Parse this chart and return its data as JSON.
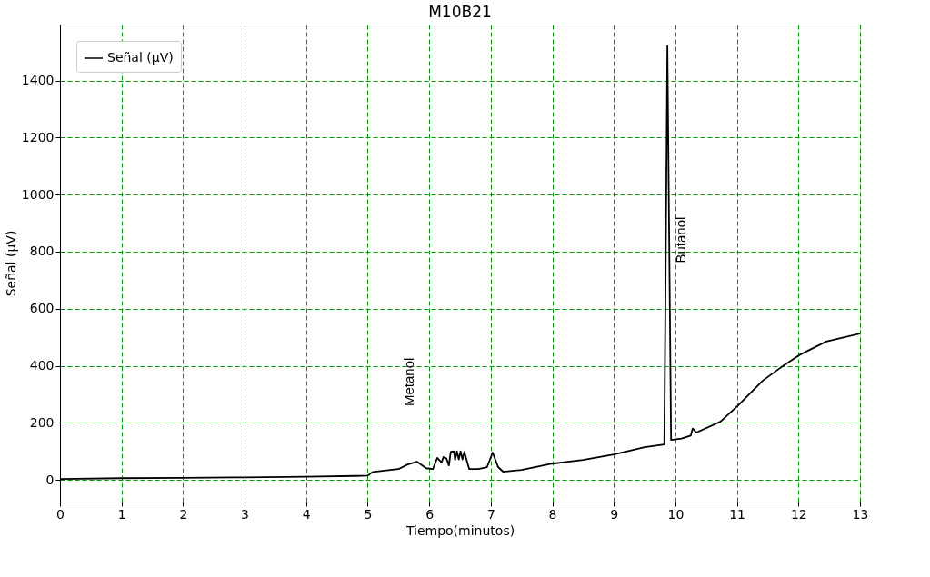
{
  "chart_data": {
    "type": "line",
    "title": "M10B21",
    "xlabel": "Tiempo(minutos)",
    "ylabel": "Señal (μV)",
    "x": [
      0,
      1,
      2,
      3,
      4,
      4.8,
      5.0,
      5.08,
      5.5,
      5.65,
      5.8,
      5.95,
      6.06,
      6.13,
      6.2,
      6.23,
      6.28,
      6.32,
      6.35,
      6.4,
      6.42,
      6.45,
      6.48,
      6.51,
      6.54,
      6.57,
      6.65,
      6.8,
      6.94,
      7.03,
      7.12,
      7.2,
      7.5,
      8,
      8.5,
      9,
      9.5,
      9.82,
      9.87,
      9.93,
      10.1,
      10.25,
      10.28,
      10.34,
      10.73,
      11.02,
      11.42,
      11.72,
      12.01,
      12.45,
      13
    ],
    "series": [
      {
        "name": "Señal (μV)",
        "color": "#000000",
        "values": [
          3,
          6,
          7,
          9,
          11,
          14,
          15,
          28,
          38,
          54,
          64,
          41,
          38,
          77,
          61,
          80,
          75,
          51,
          99,
          100,
          70,
          100,
          72,
          100,
          72,
          98,
          38,
          38,
          45,
          96,
          45,
          29,
          35,
          57,
          70,
          89,
          115,
          124,
          1521,
          140,
          145,
          155,
          180,
          166,
          204,
          261,
          348,
          395,
          437,
          485,
          513
        ]
      }
    ],
    "xlim": [
      0,
      13
    ],
    "ylim": [
      -76,
      1596
    ],
    "xticks": [
      0,
      1,
      2,
      3,
      4,
      5,
      6,
      7,
      8,
      9,
      10,
      11,
      12,
      13
    ],
    "yticks": [
      0,
      200,
      400,
      600,
      800,
      1000,
      1200,
      1400
    ],
    "grid": true,
    "legend": "top left",
    "line_style": "solid",
    "marker": "none",
    "annotations": [
      "Metanol",
      "Butanol"
    ]
  }
}
